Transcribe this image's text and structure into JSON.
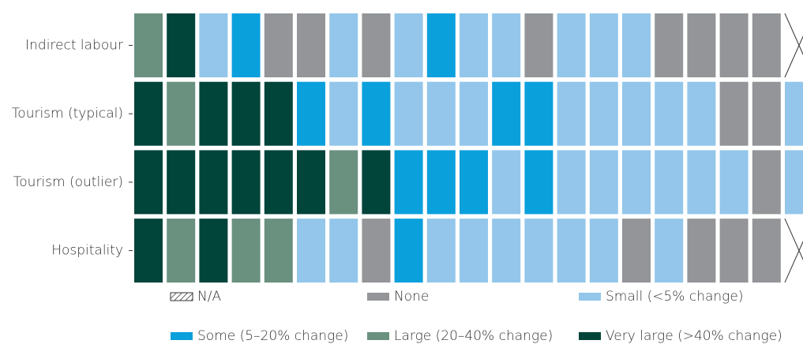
{
  "chart_data": {
    "type": "heatmap",
    "legend": [
      {
        "name": "N/A",
        "pattern": "hatch"
      },
      {
        "name": "None",
        "color": "#939598"
      },
      {
        "name": "Small (<5% change)",
        "color": "#93c6ea"
      },
      {
        "name": "Some (5–20% change)",
        "color": "#0aa0dc"
      },
      {
        "name": "Large (20–40% change)",
        "color": "#6a9080"
      },
      {
        "name": "Very large (>40% change)",
        "color": "#00443a"
      }
    ],
    "rows": [
      {
        "label": "Indirect labour",
        "values": [
          "Large (20–40% change)",
          "Very large (>40% change)",
          "Small (<5% change)",
          "Some (5–20% change)",
          "None",
          "None",
          "Small (<5% change)",
          "None",
          "Small (<5% change)",
          "Some (5–20% change)",
          "Small (<5% change)",
          "Small (<5% change)",
          "None",
          "Small (<5% change)",
          "Small (<5% change)",
          "Small (<5% change)",
          "None",
          "None",
          "None",
          "None",
          "N/A"
        ]
      },
      {
        "label": "Tourism (typical)",
        "values": [
          "Very large (>40% change)",
          "Large (20–40% change)",
          "Very large (>40% change)",
          "Very large (>40% change)",
          "Very large (>40% change)",
          "Some (5–20% change)",
          "Small (<5% change)",
          "Some (5–20% change)",
          "Small (<5% change)",
          "Small (<5% change)",
          "Small (<5% change)",
          "Some (5–20% change)",
          "Some (5–20% change)",
          "Small (<5% change)",
          "Small (<5% change)",
          "Small (<5% change)",
          "Small (<5% change)",
          "Small (<5% change)",
          "None",
          "None",
          "Small (<5% change)"
        ]
      },
      {
        "label": "Tourism (outlier)",
        "values": [
          "Very large (>40% change)",
          "Very large (>40% change)",
          "Very large (>40% change)",
          "Very large (>40% change)",
          "Very large (>40% change)",
          "Very large (>40% change)",
          "Large (20–40% change)",
          "Very large (>40% change)",
          "Some (5–20% change)",
          "Some (5–20% change)",
          "Some (5–20% change)",
          "Small (<5% change)",
          "Some (5–20% change)",
          "Small (<5% change)",
          "Small (<5% change)",
          "Small (<5% change)",
          "Small (<5% change)",
          "Small (<5% change)",
          "Small (<5% change)",
          "None",
          "Small (<5% change)"
        ]
      },
      {
        "label": "Hospitality",
        "values": [
          "Very large (>40% change)",
          "Large (20–40% change)",
          "Very large (>40% change)",
          "Large (20–40% change)",
          "Large (20–40% change)",
          "Small (<5% change)",
          "Small (<5% change)",
          "None",
          "Some (5–20% change)",
          "Small (<5% change)",
          "Small (<5% change)",
          "Small (<5% change)",
          "Small (<5% change)",
          "Small (<5% change)",
          "Small (<5% change)",
          "None",
          "Small (<5% change)",
          "None",
          "None",
          "None",
          "N/A"
        ]
      }
    ]
  }
}
